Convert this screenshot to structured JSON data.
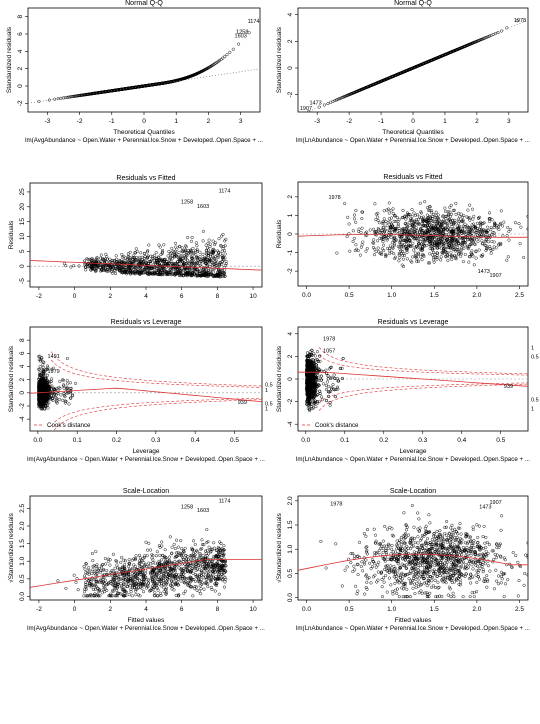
{
  "chart_data": [
    {
      "type": "scatter",
      "title": "Normal Q-Q",
      "xlabel": "Theoretical Quantiles",
      "ylabel": "Standardized residuals",
      "caption": "lm(AvgAbundance ~ Open.Water + Perennial.Ice.Snow + Developed..Open.Space + ...",
      "xlim": [
        -3.6,
        3.6
      ],
      "ylim": [
        -3,
        9
      ],
      "xticks": [
        "-3",
        "-2",
        "-1",
        "0",
        "1",
        "2",
        "3"
      ],
      "yticks": [
        "-2",
        "0",
        "2",
        "4",
        "6",
        "8"
      ],
      "ref_line": "dotted",
      "points": "normal-qq-right-skewed",
      "labels": [
        {
          "text": "1174",
          "x": 3.4,
          "y": 7.5
        },
        {
          "text": "1258",
          "x": 3.05,
          "y": 6.3
        },
        {
          "text": "1603",
          "x": 3.0,
          "y": 5.8
        }
      ]
    },
    {
      "type": "scatter",
      "title": "Normal Q-Q",
      "xlabel": "Theoretical Quantiles",
      "ylabel": "Standardized residuals",
      "caption": "lm(LnAbundance ~ Open.Water + Perennial.Ice.Snow + Developed..Open.Space + ...",
      "xlim": [
        -3.6,
        3.6
      ],
      "ylim": [
        -3.3,
        4.5
      ],
      "xticks": [
        "-3",
        "-2",
        "-1",
        "0",
        "1",
        "2",
        "3"
      ],
      "yticks": [
        "-2",
        "0",
        "2",
        "4"
      ],
      "ref_line": "dotted",
      "points": "normal-qq-linear",
      "labels": [
        {
          "text": "1978",
          "x": 3.35,
          "y": 3.6
        },
        {
          "text": "1473",
          "x": -3.05,
          "y": -2.6
        },
        {
          "text": "1907",
          "x": -3.35,
          "y": -3.0
        }
      ]
    },
    {
      "type": "scatter",
      "title": "Residuals vs Fitted",
      "xlabel": "",
      "ylabel": "Residuals",
      "caption": "",
      "xlim": [
        -2.5,
        10.5
      ],
      "ylim": [
        -7,
        28
      ],
      "xticks": [
        "-2",
        "0",
        "2",
        "4",
        "6",
        "8",
        "10"
      ],
      "yticks": [
        "-5",
        "0",
        "5",
        "10",
        "15",
        "20",
        "25"
      ],
      "trend": "red-smooth-decreasing",
      "points": "fan-shape",
      "labels": [
        {
          "text": "1174",
          "x": 8.4,
          "y": 25.5
        },
        {
          "text": "1258",
          "x": 6.3,
          "y": 21.8
        },
        {
          "text": "1603",
          "x": 7.2,
          "y": 20.3
        }
      ]
    },
    {
      "type": "scatter",
      "title": "Residuals vs Fitted",
      "xlabel": "",
      "ylabel": "Residuals",
      "caption": "",
      "xlim": [
        -0.1,
        2.6
      ],
      "ylim": [
        -2.8,
        2.8
      ],
      "xticks": [
        "0.0",
        "0.5",
        "1.0",
        "1.5",
        "2.0",
        "2.5"
      ],
      "yticks": [
        "-2",
        "-1",
        "0",
        "1",
        "2"
      ],
      "trend": "red-smooth-flat",
      "points": "cloud",
      "labels": [
        {
          "text": "1978",
          "x": 0.33,
          "y": 2.0
        },
        {
          "text": "1473",
          "x": 2.08,
          "y": -2.0
        },
        {
          "text": "1907",
          "x": 2.22,
          "y": -2.2
        }
      ]
    },
    {
      "type": "scatter",
      "title": "Residuals vs Leverage",
      "xlabel": "Leverage",
      "ylabel": "Standardized residuals",
      "caption": "lm(AvgAbundance ~ Open.Water + Perennial.Ice.Snow + Developed..Open.Space + ...",
      "xlim": [
        -0.02,
        0.57
      ],
      "ylim": [
        -5.8,
        10
      ],
      "xticks": [
        "0.0",
        "0.1",
        "0.2",
        "0.3",
        "0.4",
        "0.5"
      ],
      "yticks": [
        "-4",
        "-2",
        "0",
        "2",
        "4",
        "6",
        "8"
      ],
      "legend_text": "Cook's distance",
      "contour_labels": [
        "0.5",
        "1",
        "0.5",
        "1"
      ],
      "trend": "red-smooth",
      "points": "leverage-cluster",
      "labels": [
        {
          "text": "1491",
          "x": 0.04,
          "y": 5.6
        },
        {
          "text": "1979",
          "x": 0.04,
          "y": 3.3
        },
        {
          "text": "939",
          "x": 0.52,
          "y": -1.4
        }
      ]
    },
    {
      "type": "scatter",
      "title": "Residuals vs Leverage",
      "xlabel": "Leverage",
      "ylabel": "Standardized residuals",
      "caption": "lm(LnAbundance ~ Open.Water + Perennial.Ice.Snow + Developed..Open.Space + ...",
      "xlim": [
        -0.02,
        0.57
      ],
      "ylim": [
        -4.6,
        4.6
      ],
      "xticks": [
        "0.0",
        "0.1",
        "0.2",
        "0.3",
        "0.4",
        "0.5"
      ],
      "yticks": [
        "-4",
        "-2",
        "0",
        "2",
        "4"
      ],
      "legend_text": "Cook's distance",
      "contour_labels": [
        "1",
        "0.5",
        "0.5",
        "1"
      ],
      "trend": "red-smooth",
      "points": "leverage-cluster-sym",
      "labels": [
        {
          "text": "1978",
          "x": 0.06,
          "y": 3.6
        },
        {
          "text": "1057",
          "x": 0.06,
          "y": 2.5
        },
        {
          "text": "939",
          "x": 0.52,
          "y": -0.6
        }
      ]
    },
    {
      "type": "scatter",
      "title": "Scale-Location",
      "xlabel": "Fitted values",
      "ylabel": "√Standardized residuals",
      "caption": "lm(AvgAbundance ~ Open.Water + Perennial.Ice.Snow + Developed..Open.Space + ...",
      "xlim": [
        -2.5,
        10.5
      ],
      "ylim": [
        -0.1,
        2.85
      ],
      "xticks": [
        "-2",
        "0",
        "2",
        "4",
        "6",
        "8",
        "10"
      ],
      "yticks": [
        "0.0",
        "0.5",
        "1.0",
        "1.5",
        "2.0",
        "2.5"
      ],
      "trend": "red-smooth-increasing",
      "points": "scale-location",
      "labels": [
        {
          "text": "1174",
          "x": 8.4,
          "y": 2.72
        },
        {
          "text": "1258",
          "x": 6.3,
          "y": 2.55
        },
        {
          "text": "1603",
          "x": 7.2,
          "y": 2.45
        }
      ]
    },
    {
      "type": "scatter",
      "title": "Scale-Location",
      "xlabel": "Fitted values",
      "ylabel": "√Standardized residuals",
      "caption": "lm(LnAbundance ~ Open.Water + Perennial.Ice.Snow + Developed..Open.Space + ...",
      "xlim": [
        -0.1,
        2.6
      ],
      "ylim": [
        -0.05,
        2.1
      ],
      "xticks": [
        "0.0",
        "0.5",
        "1.0",
        "1.5",
        "2.0",
        "2.5"
      ],
      "yticks": [
        "0.0",
        "0.5",
        "1.0",
        "1.5",
        "2.0"
      ],
      "trend": "red-smooth-hump",
      "points": "scale-location-ln",
      "labels": [
        {
          "text": "1978",
          "x": 0.35,
          "y": 1.95
        },
        {
          "text": "1907",
          "x": 2.22,
          "y": 1.98
        },
        {
          "text": "1473",
          "x": 2.1,
          "y": 1.88
        }
      ]
    }
  ]
}
